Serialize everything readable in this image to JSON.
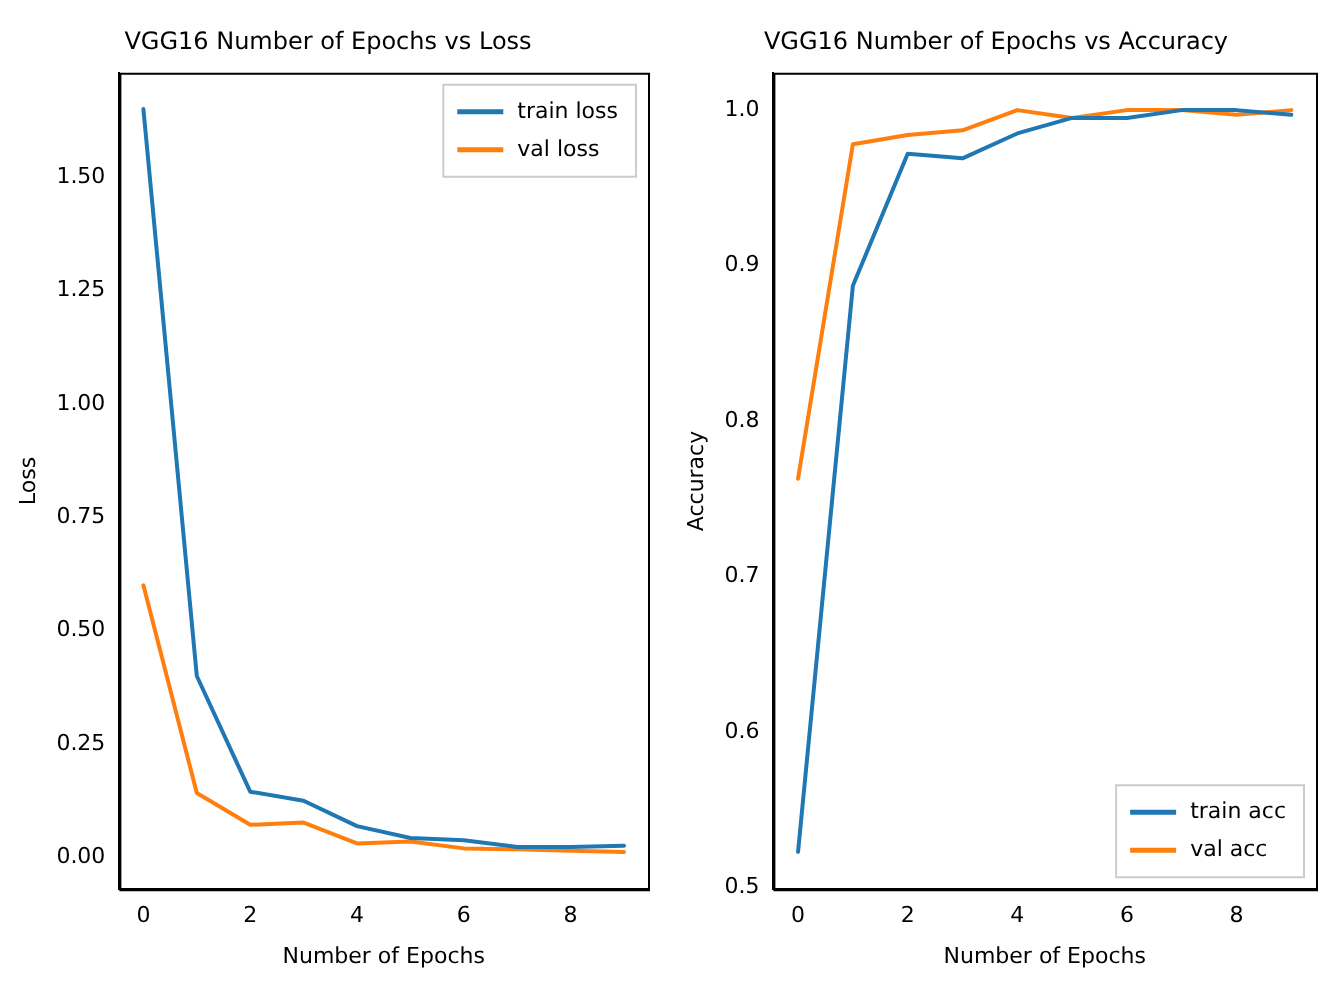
{
  "chart_data": [
    {
      "type": "line",
      "title": "VGG16 Number of Epochs vs Loss",
      "xlabel": "Number of Epochs",
      "ylabel": "Loss",
      "x": [
        0,
        1,
        2,
        3,
        4,
        5,
        6,
        7,
        8,
        9
      ],
      "series": [
        {
          "name": "train loss",
          "color": "#1f77b4",
          "values": [
            1.65,
            0.4,
            0.145,
            0.125,
            0.069,
            0.043,
            0.038,
            0.023,
            0.023,
            0.026
          ]
        },
        {
          "name": "val loss",
          "color": "#ff7f0e",
          "values": [
            0.6,
            0.142,
            0.072,
            0.077,
            0.031,
            0.035,
            0.02,
            0.018,
            0.015,
            0.012
          ]
        }
      ],
      "xlim": [
        -0.45,
        9.45
      ],
      "xticks": [
        0,
        2,
        4,
        6,
        8
      ],
      "ylim": [
        -0.07,
        1.73
      ],
      "yticks": [
        {
          "value": 0,
          "label": "0.00"
        },
        {
          "value": 0.25,
          "label": "0.25"
        },
        {
          "value": 0.5,
          "label": "0.50"
        },
        {
          "value": 0.75,
          "label": "0.75"
        },
        {
          "value": 1,
          "label": "1.00"
        },
        {
          "value": 1.25,
          "label": "1.25"
        },
        {
          "value": 1.5,
          "label": "1.50"
        }
      ],
      "legend": "top right",
      "marker": "none",
      "line_style": "solid"
    },
    {
      "type": "line",
      "title": "VGG16 Number of Epochs vs Accuracy",
      "xlabel": "Number of Epochs",
      "ylabel": "Accuracy",
      "x": [
        0,
        1,
        2,
        3,
        4,
        5,
        6,
        7,
        8,
        9
      ],
      "series": [
        {
          "name": "train acc",
          "color": "#1f77b4",
          "values": [
            0.523,
            0.887,
            0.972,
            0.969,
            0.985,
            0.995,
            0.995,
            1.0,
            1.0,
            0.997
          ]
        },
        {
          "name": "val acc",
          "color": "#ff7f0e",
          "values": [
            0.763,
            0.978,
            0.984,
            0.987,
            1.0,
            0.995,
            1.0,
            1.0,
            0.997,
            1.0
          ]
        }
      ],
      "xlim": [
        -0.45,
        9.45
      ],
      "xticks": [
        0,
        2,
        4,
        6,
        8
      ],
      "ylim": [
        0.499,
        1.024
      ],
      "yticks": [
        0.5,
        0.6,
        0.7,
        0.8,
        0.9,
        {
          "value": 1,
          "label": "1.0"
        }
      ],
      "legend": "bottom right",
      "marker": "none",
      "line_style": "solid"
    }
  ]
}
